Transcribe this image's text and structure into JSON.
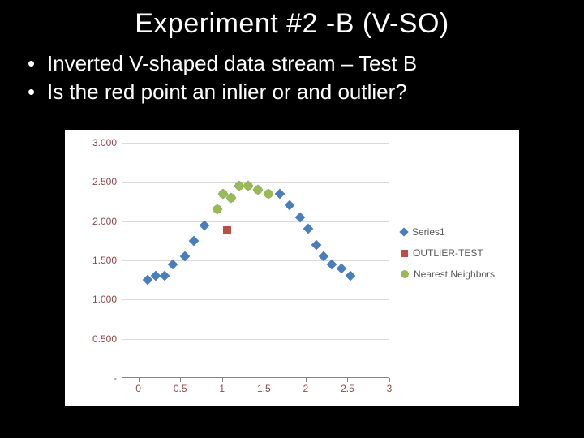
{
  "title": "Experiment #2 -B (V-SO)",
  "bullets": [
    "Inverted V-shaped data stream – Test B",
    "Is the red point an inlier or and outlier?"
  ],
  "chart": {
    "type": "scatter",
    "background_color": "#ffffff",
    "grid_color": "#d9d9d9",
    "axis_color": "#868686",
    "tick_label_color": "#8c4a4a",
    "tick_fontsize": 12,
    "x": {
      "min": -0.2,
      "max": 3.0,
      "ticks": [
        0,
        0.5,
        1,
        1.5,
        2,
        2.5,
        3
      ],
      "tick_labels": [
        "0",
        "0.5",
        "1",
        "1.5",
        "2",
        "2.5",
        "3"
      ]
    },
    "y": {
      "min": 0,
      "max": 3.0,
      "ticks": [
        0,
        0.5,
        1,
        1.5,
        2,
        2.5,
        3
      ],
      "tick_labels": [
        "-",
        "0.500",
        "1.000",
        "1.500",
        "2.000",
        "2.500",
        "3.000"
      ]
    },
    "series": [
      {
        "name": "Series1",
        "marker": "diamond",
        "color": "#4a7ebb",
        "points": [
          [
            0.1,
            1.25
          ],
          [
            0.2,
            1.3
          ],
          [
            0.3,
            1.3
          ],
          [
            0.4,
            1.45
          ],
          [
            0.55,
            1.55
          ],
          [
            0.65,
            1.75
          ],
          [
            0.78,
            1.95
          ],
          [
            0.93,
            2.15
          ],
          [
            1.0,
            2.35
          ],
          [
            1.1,
            2.3
          ],
          [
            1.2,
            2.45
          ],
          [
            1.3,
            2.45
          ],
          [
            1.42,
            2.4
          ],
          [
            1.55,
            2.35
          ],
          [
            1.68,
            2.35
          ],
          [
            1.8,
            2.2
          ],
          [
            1.92,
            2.05
          ],
          [
            2.02,
            1.9
          ],
          [
            2.12,
            1.7
          ],
          [
            2.2,
            1.55
          ],
          [
            2.3,
            1.45
          ],
          [
            2.42,
            1.4
          ],
          [
            2.52,
            1.3
          ]
        ]
      },
      {
        "name": "OUTLIER-TEST",
        "marker": "square",
        "color": "#be4b48",
        "points": [
          [
            1.05,
            1.88
          ]
        ]
      },
      {
        "name": "Nearest Neighbors",
        "marker": "circle",
        "color": "#98b954",
        "points": [
          [
            0.93,
            2.15
          ],
          [
            1.0,
            2.35
          ],
          [
            1.1,
            2.3
          ],
          [
            1.2,
            2.45
          ],
          [
            1.3,
            2.45
          ],
          [
            1.42,
            2.4
          ],
          [
            1.55,
            2.35
          ]
        ]
      }
    ],
    "legend": {
      "fontsize": 12,
      "text_color": "#595959"
    }
  }
}
